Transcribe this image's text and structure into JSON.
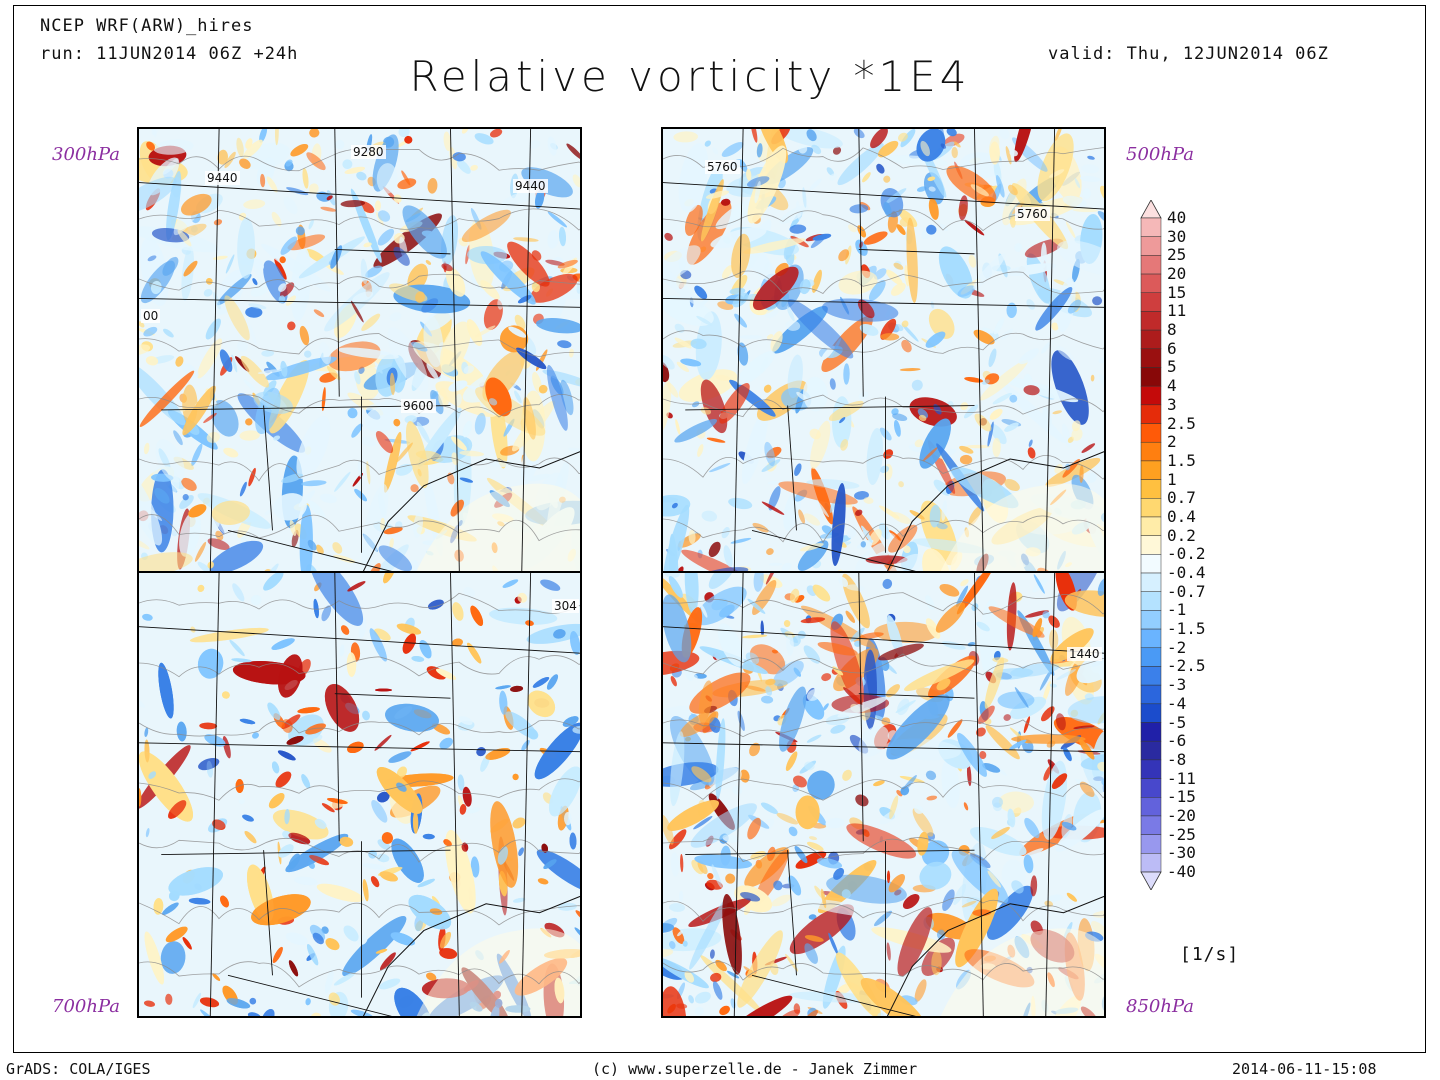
{
  "header": {
    "model": "NCEP WRF(ARW)_hires",
    "run": "run: 11JUN2014 06Z +24h",
    "valid": "valid: Thu, 12JUN2014 06Z",
    "title": "Relative vorticity *1E4"
  },
  "panels": [
    {
      "level": "300hPa",
      "contour_labels": [
        "9280",
        "9440",
        "9440",
        "00",
        "9600"
      ]
    },
    {
      "level": "500hPa",
      "contour_labels": [
        "5760",
        "5760"
      ]
    },
    {
      "level": "700hPa",
      "contour_labels": [
        "304"
      ]
    },
    {
      "level": "850hPa",
      "contour_labels": [
        "1440"
      ]
    }
  ],
  "colorbar": {
    "labels": [
      "40",
      "30",
      "25",
      "20",
      "15",
      "11",
      "8",
      "6",
      "5",
      "4",
      "3",
      "2.5",
      "2",
      "1.5",
      "1",
      "0.7",
      "0.4",
      "0.2",
      "-0.2",
      "-0.4",
      "-0.7",
      "-1",
      "-1.5",
      "-2",
      "-2.5",
      "-3",
      "-4",
      "-5",
      "-6",
      "-8",
      "-11",
      "-15",
      "-20",
      "-25",
      "-30",
      "-40"
    ],
    "colors": [
      "#fce0e0",
      "#f5b8b8",
      "#ee9a9a",
      "#e57878",
      "#dc5a5a",
      "#cf3e3e",
      "#c02a2a",
      "#ad1c1c",
      "#9a1010",
      "#880808",
      "#c40a0a",
      "#e52c0a",
      "#ff5a08",
      "#ff7f10",
      "#ffa020",
      "#ffc040",
      "#ffd870",
      "#ffeca8",
      "#fff8d8",
      "#f2fbff",
      "#d6f0ff",
      "#b4e2ff",
      "#92ceff",
      "#6ab4ff",
      "#4a9af5",
      "#3b80ea",
      "#2b66dd",
      "#1b4ccc",
      "#2020a8",
      "#2a2aa0",
      "#3434b8",
      "#4848cc",
      "#6262dc",
      "#7a7ae6",
      "#9898ee",
      "#bcbcf6",
      "#dcdcfb"
    ],
    "units": "[1/s]"
  },
  "footer": {
    "left": "GrADS: COLA/IGES",
    "center": "(c) www.superzelle.de - Janek Zimmer",
    "right": "2014-06-11-15:08"
  }
}
